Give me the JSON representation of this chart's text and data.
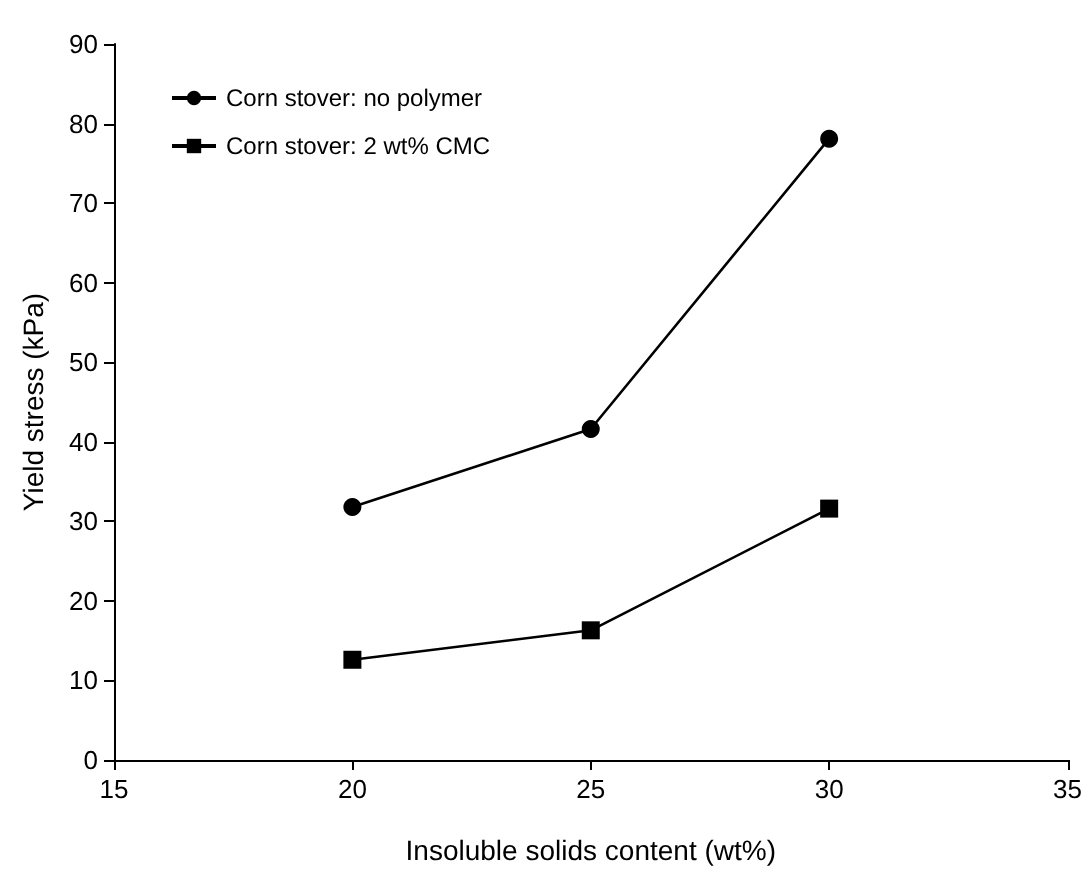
{
  "chart_data": {
    "type": "line",
    "xlabel": "Insoluble solids content (wt%)",
    "ylabel": "Yield stress (kPa)",
    "x": [
      20,
      25,
      30
    ],
    "series": [
      {
        "name": "Corn stover: no polymer",
        "color": "#000000",
        "marker": "circle",
        "values": [
          31.8,
          41.6,
          78.1
        ]
      },
      {
        "name": "Corn stover: 2 wt% CMC",
        "color": "#000000",
        "marker": "square",
        "values": [
          12.6,
          16.3,
          31.6
        ]
      }
    ],
    "xlim": [
      15,
      35
    ],
    "xticks": [
      15,
      20,
      25,
      30,
      35
    ],
    "ylim": [
      0,
      90
    ],
    "yticks": [
      0,
      10,
      20,
      30,
      40,
      50,
      60,
      70,
      80,
      90
    ],
    "grid": false,
    "legend": "top left",
    "line_style": "solid"
  }
}
